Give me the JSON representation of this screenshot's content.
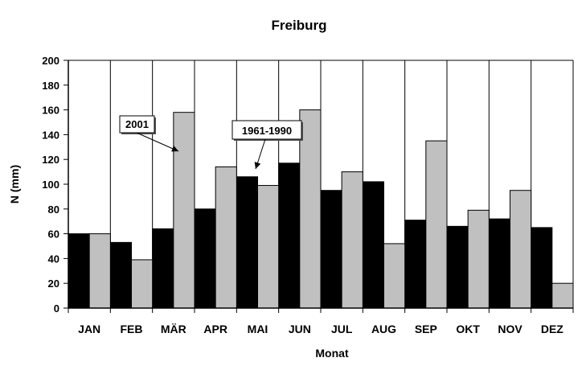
{
  "chart_data": {
    "type": "bar",
    "title": "Freiburg",
    "xlabel": "Monat",
    "ylabel": "N  (mm)",
    "ylim": [
      0,
      200
    ],
    "yticks": [
      0,
      20,
      40,
      60,
      80,
      100,
      120,
      140,
      160,
      180,
      200
    ],
    "grid": "vertical category separators",
    "legend": "none (series identified by annotation callouts)",
    "categories": [
      "JAN",
      "FEB",
      "MÄR",
      "APR",
      "MAI",
      "JUN",
      "JUL",
      "AUG",
      "SEP",
      "OKT",
      "NOV",
      "DEZ"
    ],
    "series": [
      {
        "name": "1961-1990",
        "color": "#000000",
        "values": [
          60,
          53,
          64,
          80,
          106,
          117,
          95,
          102,
          71,
          66,
          72,
          65
        ]
      },
      {
        "name": "2001",
        "color": "#c0c0c0",
        "values": [
          60,
          39,
          158,
          114,
          99,
          160,
          110,
          52,
          135,
          79,
          95,
          20
        ]
      }
    ],
    "annotations": [
      {
        "text": "2001",
        "target_series": "2001",
        "target_category": "MÄR"
      },
      {
        "text": "1961-1990",
        "target_series": "1961-1990",
        "target_category": "MAI"
      }
    ]
  }
}
